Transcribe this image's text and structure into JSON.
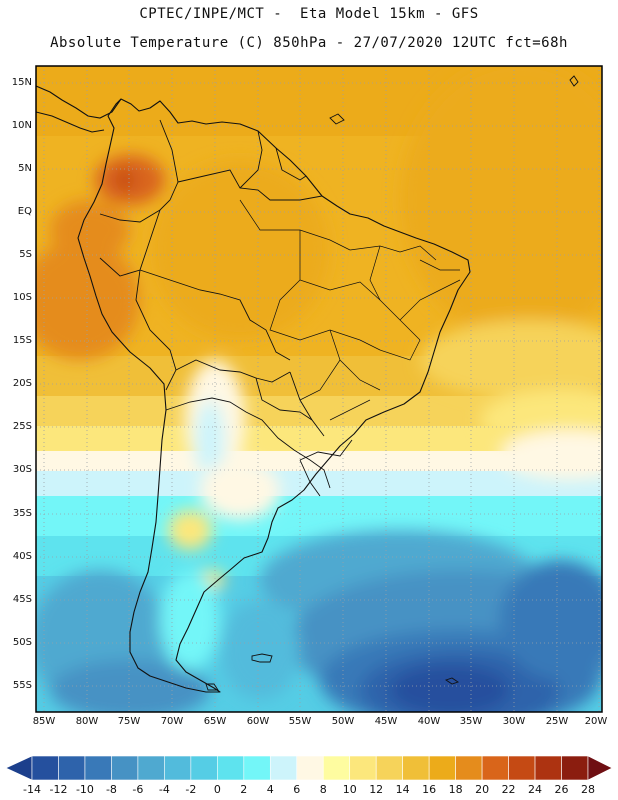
{
  "header": {
    "line1": "CPTEC/INPE/MCT -  Eta Model 15km - GFS",
    "line2": "Absolute Temperature (C) 850hPa - 27/07/2020 12UTC fct=68h"
  },
  "map": {
    "region": "South America",
    "field": "850hPa absolute temperature",
    "lat_labels": [
      "15N",
      "10N",
      "5N",
      "EQ",
      "5S",
      "10S",
      "15S",
      "20S",
      "25S",
      "30S",
      "35S",
      "40S",
      "45S",
      "50S",
      "55S"
    ],
    "lon_labels": [
      "85W",
      "80W",
      "75W",
      "70W",
      "65W",
      "60W",
      "55W",
      "50W",
      "45W",
      "40W",
      "35W",
      "30W",
      "25W",
      "20W"
    ]
  },
  "colorbar": {
    "labels": [
      "-14",
      "-12",
      "-10",
      "-8",
      "-6",
      "-4",
      "-2",
      "0",
      "2",
      "4",
      "6",
      "8",
      "10",
      "12",
      "14",
      "16",
      "18",
      "20",
      "22",
      "24",
      "26",
      "28"
    ],
    "colors": [
      "#1c3f8c",
      "#25509e",
      "#2e63ab",
      "#3979b8",
      "#4692c4",
      "#4fa9d0",
      "#52bbdc",
      "#55cde5",
      "#5ee3ee",
      "#73f6f8",
      "#cdf4fb",
      "#fff8e4",
      "#fefca0",
      "#fce77c",
      "#f6d35a",
      "#f0bf38",
      "#ecab1a",
      "#e58c1c",
      "#d9651a",
      "#c54a14",
      "#ad3311",
      "#8b1d0f",
      "#6f0f13"
    ]
  }
}
